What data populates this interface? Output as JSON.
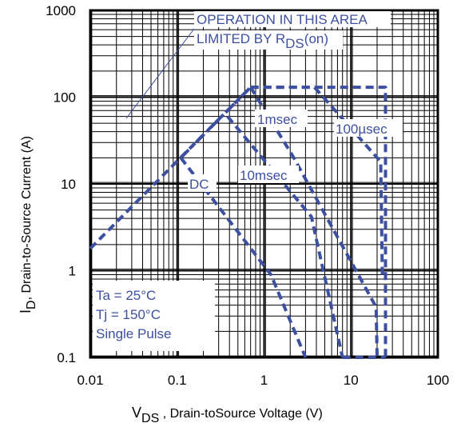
{
  "chart_data": {
    "type": "line",
    "title": "",
    "xlabel": {
      "main": "V",
      "sub": "DS",
      "rest": " , Drain-toSource Voltage (V)"
    },
    "ylabel": {
      "main": "I",
      "sub": "D",
      "rest": ",  Drain-to-Source Current (A)"
    },
    "xscale": "log",
    "yscale": "log",
    "xlim": [
      0.01,
      100
    ],
    "ylim": [
      0.1,
      1000
    ],
    "grid": true,
    "x_ticks": [
      "0.01",
      "0.1",
      "1",
      "10",
      "100"
    ],
    "y_ticks": [
      "0.1",
      "1",
      "10",
      "100",
      "1000"
    ],
    "series": [
      {
        "name": "",
        "points": [
          [
            0.01,
            1.8
          ],
          [
            0.7,
            130
          ]
        ],
        "style": "dashed"
      },
      {
        "name": "",
        "points": [
          [
            0.7,
            130
          ],
          [
            25,
            130
          ],
          [
            25,
            0.1
          ]
        ],
        "style": "dashed"
      },
      {
        "name": "",
        "points": [
          [
            0.11,
            20
          ],
          [
            0.7,
            130
          ]
        ],
        "style": "dashdot"
      },
      {
        "name": "",
        "points": [
          [
            0.7,
            130
          ],
          [
            2.2,
            20
          ],
          [
            19.5,
            0.38
          ],
          [
            20,
            0.1
          ]
        ],
        "style": "dashed"
      },
      {
        "name": "",
        "points": [
          [
            0.7,
            130
          ],
          [
            3.8,
            130
          ],
          [
            22,
            18
          ],
          [
            23,
            0.8
          ]
        ],
        "style": "dashed"
      },
      {
        "name": "",
        "points": [
          [
            0.38,
            60
          ],
          [
            3.5,
            4.2
          ],
          [
            8,
            0.1
          ]
        ],
        "style": "dashed"
      },
      {
        "name": "",
        "points": [
          [
            0.11,
            20
          ],
          [
            1.2,
            0.9
          ],
          [
            3,
            0.1
          ]
        ],
        "style": "dashed"
      },
      {
        "name": "",
        "points": [
          [
            8,
            0.1
          ],
          [
            25,
            0.1
          ]
        ],
        "style": "dashed"
      }
    ],
    "annotations": {
      "operation_line1": "OPERATION IN THIS AREA",
      "operation_line2_pre": "LIMITED BY R",
      "operation_line2_sub": "DS",
      "operation_line2_post": "(on)",
      "label_1msec": "1msec",
      "label_100usec": "100µsec",
      "label_10msec": "10msec",
      "label_dc": "DC"
    },
    "conditions": [
      "Ta = 25°C",
      "Tj = 150°C",
      "Single Pulse"
    ]
  },
  "colors": {
    "curve": "#3d4f9f",
    "grid": "#000000",
    "axes": "#000000"
  }
}
